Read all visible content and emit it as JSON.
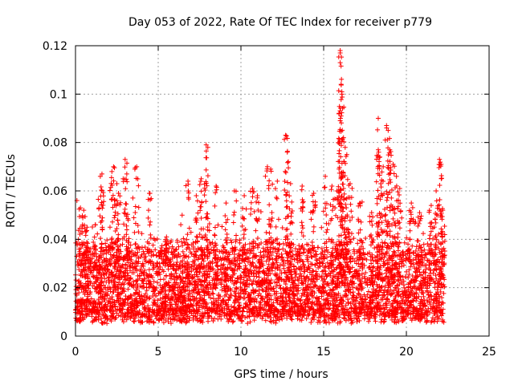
{
  "chart_data": {
    "type": "scatter",
    "title": "Day 053 of 2022, Rate Of TEC Index for receiver p779",
    "xlabel": "GPS time / hours",
    "ylabel": "ROTI / TECUs",
    "xlim": [
      0,
      25
    ],
    "ylim": [
      0,
      0.12
    ],
    "x_ticks": [
      0,
      5,
      10,
      15,
      20,
      25
    ],
    "x_tick_labels": [
      "0",
      "5",
      "10",
      "15",
      "20",
      "25"
    ],
    "y_ticks": [
      0,
      0.02,
      0.04,
      0.06,
      0.08,
      0.1,
      0.12
    ],
    "y_tick_labels": [
      "0",
      "0.02",
      "0.04",
      "0.06",
      "0.08",
      "0.1",
      "0.12"
    ],
    "grid": true,
    "marker": "+",
    "color": "#ff0000",
    "x_extent": [
      0,
      22.3
    ],
    "series": [
      {
        "points": [
          [
            0.3,
            0.053
          ],
          [
            0.5,
            0.052
          ],
          [
            0.7,
            0.045
          ],
          [
            1.2,
            0.046
          ],
          [
            1.5,
            0.066
          ],
          [
            1.6,
            0.067
          ],
          [
            2.2,
            0.068
          ],
          [
            2.3,
            0.07
          ],
          [
            2.5,
            0.063
          ],
          [
            2.6,
            0.059
          ],
          [
            3.0,
            0.073
          ],
          [
            3.1,
            0.067
          ],
          [
            3.7,
            0.07
          ],
          [
            4.5,
            0.059
          ],
          [
            5.5,
            0.041
          ],
          [
            6.8,
            0.064
          ],
          [
            7.3,
            0.058
          ],
          [
            7.6,
            0.065
          ],
          [
            7.9,
            0.079
          ],
          [
            8.0,
            0.078
          ],
          [
            8.5,
            0.062
          ],
          [
            9.1,
            0.055
          ],
          [
            9.6,
            0.06
          ],
          [
            10.2,
            0.058
          ],
          [
            10.7,
            0.061
          ],
          [
            11.0,
            0.058
          ],
          [
            11.6,
            0.07
          ],
          [
            11.8,
            0.069
          ],
          [
            12.2,
            0.064
          ],
          [
            12.7,
            0.083
          ],
          [
            12.8,
            0.076
          ],
          [
            13.0,
            0.063
          ],
          [
            13.7,
            0.062
          ],
          [
            14.4,
            0.059
          ],
          [
            15.1,
            0.066
          ],
          [
            15.5,
            0.062
          ],
          [
            15.8,
            0.06
          ],
          [
            16.0,
            0.118
          ],
          [
            16.0,
            0.117
          ],
          [
            16.0,
            0.113
          ],
          [
            16.1,
            0.101
          ],
          [
            16.1,
            0.1
          ],
          [
            16.0,
            0.089
          ],
          [
            16.2,
            0.082
          ],
          [
            16.3,
            0.078
          ],
          [
            16.4,
            0.075
          ],
          [
            16.6,
            0.063
          ],
          [
            17.2,
            0.055
          ],
          [
            17.9,
            0.051
          ],
          [
            18.3,
            0.09
          ],
          [
            18.3,
            0.077
          ],
          [
            18.4,
            0.074
          ],
          [
            18.6,
            0.07
          ],
          [
            18.8,
            0.087
          ],
          [
            18.9,
            0.085
          ],
          [
            19.0,
            0.077
          ],
          [
            19.2,
            0.071
          ],
          [
            19.4,
            0.066
          ],
          [
            19.6,
            0.061
          ],
          [
            20.3,
            0.055
          ],
          [
            20.8,
            0.051
          ],
          [
            21.5,
            0.054
          ],
          [
            21.8,
            0.06
          ],
          [
            22.0,
            0.073
          ],
          [
            22.1,
            0.071
          ],
          [
            22.2,
            0.052
          ]
        ]
      }
    ]
  }
}
